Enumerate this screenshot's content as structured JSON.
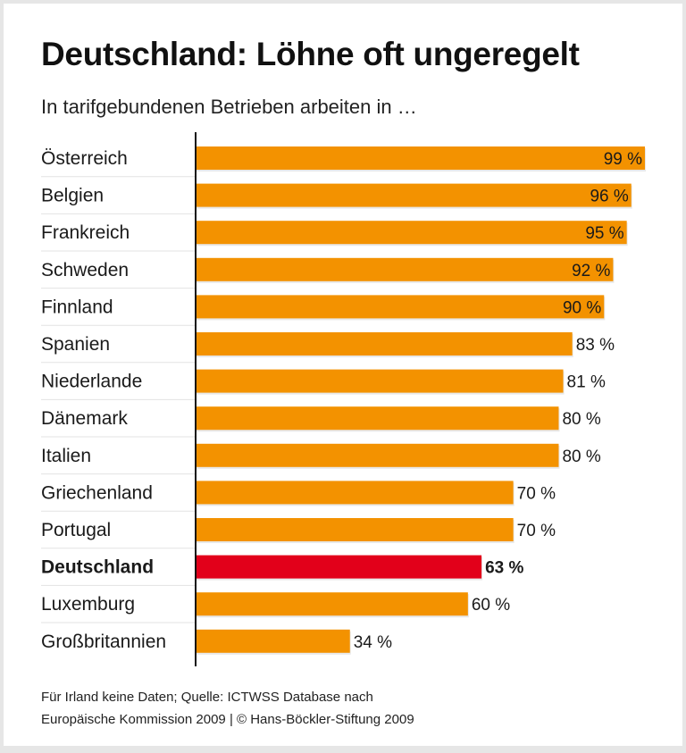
{
  "title": "Deutschland: Löhne oft ungeregelt",
  "subtitle": "In tarifgebundenen Betrieben arbeiten in …",
  "footer": {
    "line1": "Für Irland keine Daten; Quelle: ICTWSS Database nach",
    "line2": "Europäische Kommission 2009 | © Hans-Böckler-Stiftung 2009"
  },
  "chart_data": {
    "type": "bar",
    "orientation": "horizontal",
    "title": "Deutschland: Löhne oft ungeregelt",
    "subtitle": "In tarifgebundenen Betrieben arbeiten in …",
    "unit": "%",
    "xlim": [
      0,
      100
    ],
    "grid": false,
    "categories": [
      "Österreich",
      "Belgien",
      "Frankreich",
      "Schweden",
      "Finnland",
      "Spanien",
      "Niederlande",
      "Dänemark",
      "Italien",
      "Griechenland",
      "Portugal",
      "Deutschland",
      "Luxemburg",
      "Großbritannien"
    ],
    "values": [
      99,
      96,
      95,
      92,
      90,
      83,
      81,
      80,
      80,
      70,
      70,
      63,
      60,
      34
    ],
    "value_labels": [
      "99 %",
      "96 %",
      "95 %",
      "92 %",
      "90 %",
      "83 %",
      "81 %",
      "80 %",
      "80 %",
      "70 %",
      "70 %",
      "63 %",
      "60 %",
      "34 %"
    ],
    "highlight": "Deutschland",
    "colors": {
      "bar": "#f39200",
      "highlight": "#e2001a",
      "text": "#1a1a1a"
    }
  }
}
